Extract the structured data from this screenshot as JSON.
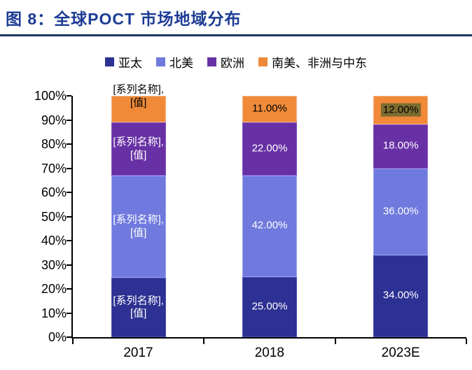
{
  "title": "图 8：全球POCT 市场地域分布",
  "title_color": "#1C3C94",
  "rule_color": "#1F3864",
  "chart_data": {
    "type": "bar",
    "subtype": "stacked-100%",
    "title": "全球POCT市场地域分布",
    "categories": [
      "2017",
      "2018",
      "2023E"
    ],
    "y_axis": {
      "ticks": [
        "100%",
        "90%",
        "80%",
        "70%",
        "60%",
        "50%",
        "40%",
        "30%",
        "20%",
        "10%",
        "0%"
      ],
      "range": [
        0,
        100
      ],
      "grid": false
    },
    "legend_position": "top-center",
    "series": [
      {
        "name": "亚太",
        "color": "#2D3193",
        "border_color": "#4A51B5",
        "values": [
          24.5,
          25,
          34
        ],
        "labels": [
          {
            "text": "[系列名称],\n[值]",
            "color": "#FFFFFF"
          },
          {
            "text": "25.00%",
            "color": "#FFFFFF"
          },
          {
            "text": "34.00%",
            "color": "#FFFFFF"
          }
        ]
      },
      {
        "name": "北美",
        "color": "#6F79DE",
        "border_color": "#9AA3F0",
        "values": [
          42.5,
          42,
          36
        ],
        "labels": [
          {
            "text": "[系列名称],\n[值]",
            "color": "#FFFFFF"
          },
          {
            "text": "42.00%",
            "color": "#FFFFFF"
          },
          {
            "text": "36.00%",
            "color": "#FFFFFF"
          }
        ]
      },
      {
        "name": "欧洲",
        "color": "#6731A5",
        "border_color": "#8550C4",
        "values": [
          22,
          22,
          18
        ],
        "labels": [
          {
            "text": "[系列名称],\n[值]",
            "color": "#FFFFFF"
          },
          {
            "text": "22.00%",
            "color": "#FFFFFF"
          },
          {
            "text": "18.00%",
            "color": "#FFFFFF"
          }
        ]
      },
      {
        "name": "南美、非洲与中东",
        "color": "#F08A38",
        "border_color": "#F5B183",
        "values": [
          11,
          11,
          12
        ],
        "labels": [
          {
            "text": "[系列名称],\n[值]",
            "color": "#000000",
            "offset_y": -18
          },
          {
            "text": "11.00%",
            "color": "#000000"
          },
          {
            "text": "12.00%",
            "color": "#000000",
            "bg": "#7D6C30"
          }
        ]
      }
    ]
  }
}
